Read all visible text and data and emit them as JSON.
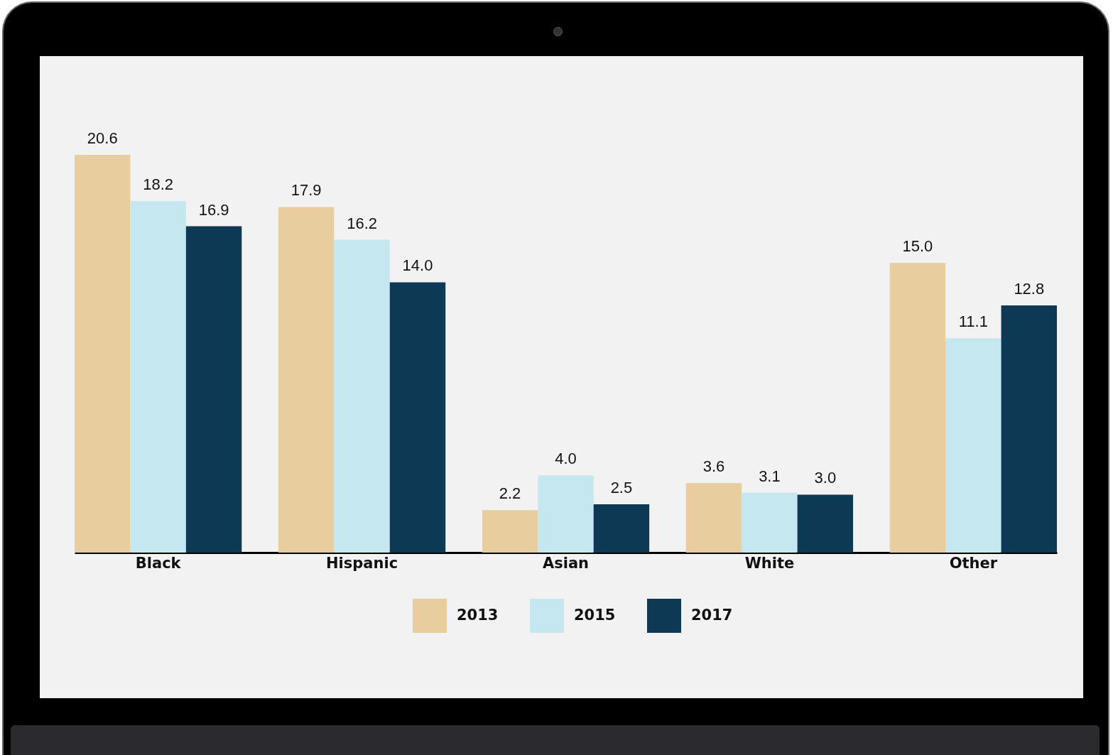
{
  "chart_data": {
    "type": "bar",
    "categories": [
      "Black",
      "Hispanic",
      "Asian",
      "White",
      "Other"
    ],
    "series": [
      {
        "name": "2013",
        "color": "#e8cd9e",
        "values": [
          20.6,
          17.9,
          2.2,
          3.6,
          15.0
        ],
        "value_labels": [
          "20.6",
          "17.9",
          "2.2",
          "3.6",
          "15.0"
        ]
      },
      {
        "name": "2015",
        "color": "#c4e7f0",
        "values": [
          18.2,
          16.2,
          4.0,
          3.1,
          11.1
        ],
        "value_labels": [
          "18.2",
          "16.2",
          "4.0",
          "3.1",
          "11.1"
        ]
      },
      {
        "name": "2017",
        "color": "#0e3954",
        "values": [
          16.9,
          14.0,
          2.5,
          3.0,
          12.8
        ],
        "value_labels": [
          "16.9",
          "14.0",
          "2.5",
          "3.0",
          "12.8"
        ]
      }
    ],
    "legend": "bottom",
    "grid": false
  }
}
